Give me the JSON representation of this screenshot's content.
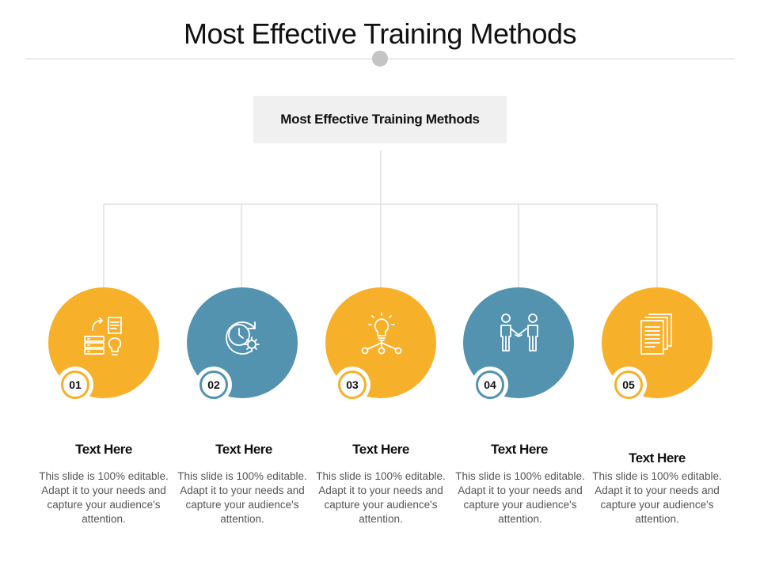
{
  "title": "Most Effective Training Methods",
  "root": {
    "label": "Most Effective Training Methods"
  },
  "colors": {
    "orange": "#F7B02A",
    "blue": "#5393B0",
    "line": "#d9d9d9"
  },
  "items": [
    {
      "number": "01",
      "heading": "Text Here",
      "text": "This slide is 100% editable. Adapt it to your needs and capture your audience's attention.",
      "color": "orange",
      "icon": "server-idea-icon"
    },
    {
      "number": "02",
      "heading": "Text Here",
      "text": "This slide is 100% editable. Adapt it to your needs and capture your audience's attention.",
      "color": "blue",
      "icon": "clock-gear-icon"
    },
    {
      "number": "03",
      "heading": "Text Here",
      "text": "This slide is 100% editable. Adapt it to your needs and capture your audience's attention.",
      "color": "orange",
      "icon": "lightbulb-network-icon"
    },
    {
      "number": "04",
      "heading": "Text Here",
      "text": "This slide is 100% editable. Adapt it to your needs and capture your audience's attention.",
      "color": "blue",
      "icon": "handshake-icon"
    },
    {
      "number": "05",
      "heading": "Text Here",
      "text": "This slide is 100% editable. Adapt it to your needs and capture your audience's attention.",
      "color": "orange",
      "icon": "documents-icon"
    }
  ]
}
